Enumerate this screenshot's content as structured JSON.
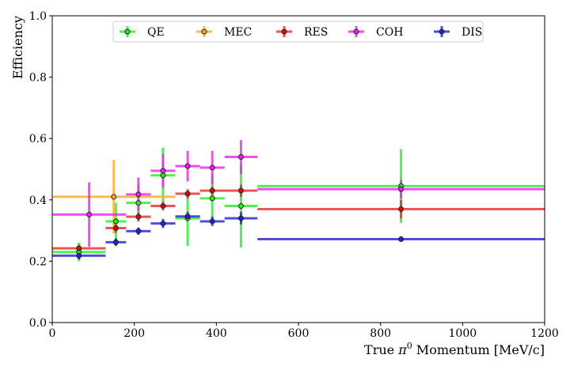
{
  "chart_data": {
    "type": "scatter",
    "title": "",
    "xlabel_prefix": "True ",
    "xlabel_symbol": "π",
    "xlabel_superscript": "0",
    "xlabel_suffix": " Momentum [MeV/c]",
    "ylabel": "Efficiency",
    "xlim": [
      0,
      1200
    ],
    "ylim": [
      0,
      1.0
    ],
    "x_ticks": [
      0,
      200,
      400,
      600,
      800,
      1000,
      1200
    ],
    "x_tick_labels": [
      "0",
      "200",
      "400",
      "600",
      "800",
      "1000",
      "1200"
    ],
    "y_ticks": [
      0,
      0.2,
      0.4,
      0.6,
      0.8,
      1.0
    ],
    "y_tick_labels": [
      "0.0",
      "0.2",
      "0.4",
      "0.6",
      "0.8",
      "1.0"
    ],
    "grid": false,
    "legend_position": "top",
    "series": [
      {
        "name": "QE",
        "color": "#22ee22",
        "marker_fill": "#22ee22",
        "points": [
          {
            "x": 65,
            "x_lo": 0,
            "x_hi": 130,
            "y": 0.23,
            "y_err": 0.03
          },
          {
            "x": 155,
            "x_lo": 130,
            "x_hi": 180,
            "y": 0.33,
            "y_err": 0.06
          },
          {
            "x": 210,
            "x_lo": 180,
            "x_hi": 240,
            "y": 0.39,
            "y_err": 0.06
          },
          {
            "x": 270,
            "x_lo": 240,
            "x_hi": 300,
            "y": 0.48,
            "y_err": 0.09
          },
          {
            "x": 330,
            "x_lo": 300,
            "x_hi": 360,
            "y": 0.34,
            "y_err": 0.09
          },
          {
            "x": 390,
            "x_lo": 360,
            "x_hi": 420,
            "y": 0.405,
            "y_err": 0.08
          },
          {
            "x": 460,
            "x_lo": 420,
            "x_hi": 500,
            "y": 0.38,
            "y_err": 0.135
          },
          {
            "x": 850,
            "x_lo": 500,
            "x_hi": 1200,
            "y": 0.445,
            "y_err": 0.12
          }
        ]
      },
      {
        "name": "MEC",
        "color": "#ffaa22",
        "marker_fill": "#ffaa22",
        "points": [
          {
            "x": 150,
            "x_lo": 0,
            "x_hi": 300,
            "y": 0.41,
            "y_err": 0.12
          }
        ]
      },
      {
        "name": "RES",
        "color": "#e62a2a",
        "marker_fill": "#cc1111",
        "points": [
          {
            "x": 65,
            "x_lo": 0,
            "x_hi": 130,
            "y": 0.242,
            "y_err": 0.012
          },
          {
            "x": 155,
            "x_lo": 130,
            "x_hi": 180,
            "y": 0.308,
            "y_err": 0.015
          },
          {
            "x": 210,
            "x_lo": 180,
            "x_hi": 240,
            "y": 0.345,
            "y_err": 0.015
          },
          {
            "x": 270,
            "x_lo": 240,
            "x_hi": 300,
            "y": 0.38,
            "y_err": 0.015
          },
          {
            "x": 330,
            "x_lo": 300,
            "x_hi": 360,
            "y": 0.42,
            "y_err": 0.015
          },
          {
            "x": 390,
            "x_lo": 360,
            "x_hi": 420,
            "y": 0.43,
            "y_err": 0.015
          },
          {
            "x": 460,
            "x_lo": 420,
            "x_hi": 500,
            "y": 0.43,
            "y_err": 0.02
          },
          {
            "x": 850,
            "x_lo": 500,
            "x_hi": 1200,
            "y": 0.37,
            "y_err": 0.03
          }
        ]
      },
      {
        "name": "COH",
        "color": "#ee22ee",
        "marker_fill": "#ee22ee",
        "points": [
          {
            "x": 90,
            "x_lo": 0,
            "x_hi": 180,
            "y": 0.352,
            "y_err": 0.105
          },
          {
            "x": 210,
            "x_lo": 180,
            "x_hi": 240,
            "y": 0.418,
            "y_err": 0.055
          },
          {
            "x": 270,
            "x_lo": 240,
            "x_hi": 300,
            "y": 0.495,
            "y_err": 0.055
          },
          {
            "x": 330,
            "x_lo": 300,
            "x_hi": 360,
            "y": 0.51,
            "y_err": 0.05
          },
          {
            "x": 390,
            "x_lo": 360,
            "x_hi": 420,
            "y": 0.505,
            "y_err": 0.055
          },
          {
            "x": 460,
            "x_lo": 420,
            "x_hi": 500,
            "y": 0.54,
            "y_err": 0.055
          },
          {
            "x": 850,
            "x_lo": 500,
            "x_hi": 1200,
            "y": 0.435,
            "y_err": 0.03
          }
        ]
      },
      {
        "name": "DIS",
        "color": "#2222cc",
        "marker_fill": "#2222cc",
        "points": [
          {
            "x": 65,
            "x_lo": 0,
            "x_hi": 130,
            "y": 0.218,
            "y_err": 0.012
          },
          {
            "x": 155,
            "x_lo": 130,
            "x_hi": 180,
            "y": 0.262,
            "y_err": 0.012
          },
          {
            "x": 210,
            "x_lo": 180,
            "x_hi": 240,
            "y": 0.298,
            "y_err": 0.012
          },
          {
            "x": 270,
            "x_lo": 240,
            "x_hi": 300,
            "y": 0.323,
            "y_err": 0.015
          },
          {
            "x": 330,
            "x_lo": 300,
            "x_hi": 360,
            "y": 0.346,
            "y_err": 0.015
          },
          {
            "x": 390,
            "x_lo": 360,
            "x_hi": 420,
            "y": 0.33,
            "y_err": 0.015
          },
          {
            "x": 460,
            "x_lo": 420,
            "x_hi": 500,
            "y": 0.34,
            "y_err": 0.02
          },
          {
            "x": 850,
            "x_lo": 500,
            "x_hi": 1200,
            "y": 0.272,
            "y_err": 0.008
          }
        ]
      }
    ]
  }
}
